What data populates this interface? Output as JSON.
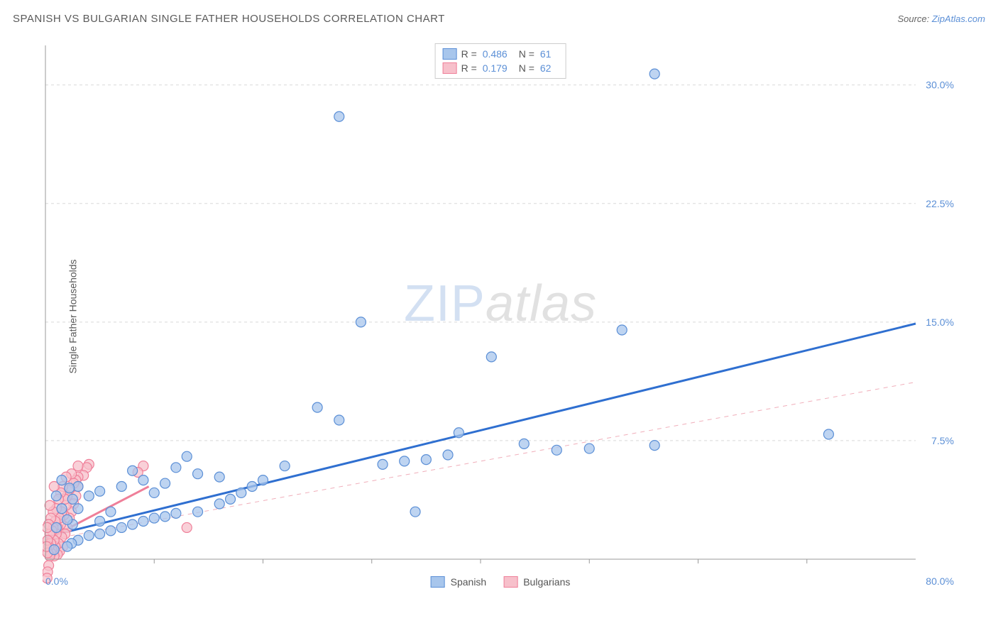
{
  "title": "SPANISH VS BULGARIAN SINGLE FATHER HOUSEHOLDS CORRELATION CHART",
  "source_prefix": "Source: ",
  "source_link": "ZipAtlas.com",
  "y_axis_label": "Single Father Households",
  "watermark_zip": "ZIP",
  "watermark_rest": "atlas",
  "chart": {
    "type": "scatter",
    "background_color": "#ffffff",
    "grid_color": "#d9d9d9",
    "axis_color": "#999999",
    "xlim": [
      0,
      80
    ],
    "ylim": [
      0,
      32.5
    ],
    "x_tick_step": 10,
    "y_ticks": [
      7.5,
      15.0,
      22.5,
      30.0
    ],
    "y_tick_format_pct": true,
    "x_axis_label_min": "0.0%",
    "x_axis_label_max": "80.0%",
    "marker_radius": 7,
    "marker_stroke_width": 1.2,
    "series": [
      {
        "name": "Spanish",
        "fill_color": "#a8c6ec",
        "stroke_color": "#5b8fd6",
        "R": "0.486",
        "N": "61",
        "points": [
          [
            56,
            30.7
          ],
          [
            27,
            28.0
          ],
          [
            29,
            15.0
          ],
          [
            53,
            14.5
          ],
          [
            41,
            12.8
          ],
          [
            72,
            7.9
          ],
          [
            56,
            7.2
          ],
          [
            50,
            7.0
          ],
          [
            47,
            6.9
          ],
          [
            44,
            7.3
          ],
          [
            38,
            8.0
          ],
          [
            37,
            6.6
          ],
          [
            35,
            6.3
          ],
          [
            33,
            6.2
          ],
          [
            31,
            6.0
          ],
          [
            34,
            3.0
          ],
          [
            25,
            9.6
          ],
          [
            27,
            8.8
          ],
          [
            22,
            5.9
          ],
          [
            20,
            5.0
          ],
          [
            19,
            4.6
          ],
          [
            18,
            4.2
          ],
          [
            17,
            3.8
          ],
          [
            16,
            5.2
          ],
          [
            16,
            3.5
          ],
          [
            14,
            3.0
          ],
          [
            14,
            5.4
          ],
          [
            13,
            6.5
          ],
          [
            12,
            5.8
          ],
          [
            12,
            2.9
          ],
          [
            11,
            4.8
          ],
          [
            11,
            2.7
          ],
          [
            10,
            2.6
          ],
          [
            10,
            4.2
          ],
          [
            9,
            5.0
          ],
          [
            9,
            2.4
          ],
          [
            8,
            2.2
          ],
          [
            8,
            5.6
          ],
          [
            7,
            2.0
          ],
          [
            7,
            4.6
          ],
          [
            6,
            1.8
          ],
          [
            6,
            3.0
          ],
          [
            5,
            4.3
          ],
          [
            5,
            2.4
          ],
          [
            5,
            1.6
          ],
          [
            4,
            1.5
          ],
          [
            4,
            4.0
          ],
          [
            3,
            1.2
          ],
          [
            3,
            3.2
          ],
          [
            3,
            4.6
          ],
          [
            2.5,
            2.2
          ],
          [
            2.5,
            3.8
          ],
          [
            2.4,
            1.0
          ],
          [
            2.2,
            4.5
          ],
          [
            2,
            0.8
          ],
          [
            2,
            2.5
          ],
          [
            1.5,
            5.0
          ],
          [
            1.5,
            3.2
          ],
          [
            1,
            2.0
          ],
          [
            1,
            4.0
          ],
          [
            0.8,
            0.6
          ]
        ],
        "trend": {
          "x1": 0,
          "y1": 1.4,
          "x2": 80,
          "y2": 14.9,
          "style": "solid",
          "width": 3,
          "color": "#2f6fd0"
        },
        "dash_trend": {
          "x1": 0,
          "y1": 1.2,
          "x2": 80,
          "y2": 11.2,
          "style": "dash",
          "width": 1,
          "color": "#f0aeba"
        }
      },
      {
        "name": "Bulgarians",
        "fill_color": "#f7c0cb",
        "stroke_color": "#ef7f99",
        "R": "0.179",
        "N": "62",
        "points": [
          [
            4.0,
            6.0
          ],
          [
            3.8,
            5.8
          ],
          [
            3.5,
            5.3
          ],
          [
            3.0,
            5.9
          ],
          [
            3.0,
            5.2
          ],
          [
            3.0,
            4.6
          ],
          [
            2.8,
            5.0
          ],
          [
            2.8,
            4.0
          ],
          [
            2.6,
            3.5
          ],
          [
            2.6,
            4.8
          ],
          [
            2.4,
            5.4
          ],
          [
            2.4,
            3.0
          ],
          [
            2.2,
            4.4
          ],
          [
            2.2,
            2.6
          ],
          [
            2.0,
            4.0
          ],
          [
            2.0,
            2.0
          ],
          [
            1.9,
            3.4
          ],
          [
            1.9,
            5.2
          ],
          [
            1.8,
            1.6
          ],
          [
            1.8,
            3.8
          ],
          [
            1.7,
            2.8
          ],
          [
            1.6,
            4.6
          ],
          [
            1.6,
            0.8
          ],
          [
            1.5,
            3.0
          ],
          [
            1.5,
            1.4
          ],
          [
            1.4,
            2.2
          ],
          [
            1.4,
            4.2
          ],
          [
            1.3,
            0.5
          ],
          [
            1.3,
            2.6
          ],
          [
            1.2,
            3.8
          ],
          [
            1.2,
            1.0
          ],
          [
            1.1,
            2.0
          ],
          [
            1.1,
            0.3
          ],
          [
            1.0,
            3.2
          ],
          [
            1.0,
            1.6
          ],
          [
            0.9,
            0.8
          ],
          [
            0.9,
            2.4
          ],
          [
            0.8,
            4.6
          ],
          [
            0.8,
            1.2
          ],
          [
            0.8,
            0.2
          ],
          [
            0.7,
            3.0
          ],
          [
            0.7,
            2.0
          ],
          [
            0.6,
            0.6
          ],
          [
            0.6,
            1.8
          ],
          [
            0.5,
            2.6
          ],
          [
            0.5,
            0.4
          ],
          [
            0.5,
            1.0
          ],
          [
            0.4,
            3.4
          ],
          [
            0.4,
            0.2
          ],
          [
            0.4,
            1.6
          ],
          [
            0.3,
            2.2
          ],
          [
            0.3,
            0.8
          ],
          [
            0.3,
            -0.4
          ],
          [
            0.2,
            1.2
          ],
          [
            0.2,
            -0.8
          ],
          [
            0.2,
            0.4
          ],
          [
            0.15,
            2.0
          ],
          [
            0.15,
            -1.2
          ],
          [
            0.1,
            0.8
          ],
          [
            9.0,
            5.9
          ],
          [
            13.0,
            2.0
          ],
          [
            8.5,
            5.5
          ]
        ],
        "trend": {
          "x1": 0,
          "y1": 1.2,
          "x2": 9.5,
          "y2": 4.6,
          "style": "solid",
          "width": 3,
          "color": "#ef7f99"
        }
      }
    ]
  },
  "legend_top_rows": [
    {
      "swatch_fill": "#a8c6ec",
      "swatch_stroke": "#5b8fd6",
      "R_label": "R =",
      "R_val": "0.486",
      "N_label": "N =",
      "N_val": "61"
    },
    {
      "swatch_fill": "#f7c0cb",
      "swatch_stroke": "#ef7f99",
      "R_label": "R =",
      "R_val": "0.179",
      "N_label": "N =",
      "N_val": "62"
    }
  ],
  "legend_bottom": [
    {
      "swatch_fill": "#a8c6ec",
      "swatch_stroke": "#5b8fd6",
      "label": "Spanish"
    },
    {
      "swatch_fill": "#f7c0cb",
      "swatch_stroke": "#ef7f99",
      "label": "Bulgarians"
    }
  ]
}
